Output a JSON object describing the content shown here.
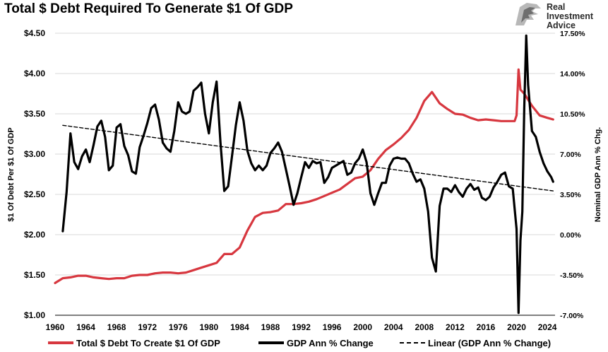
{
  "title": "Total $ Debt Required To Generate $1 Of GDP",
  "brand": {
    "line1": "Real",
    "line2": "Investment",
    "line3": "Advice"
  },
  "colors": {
    "debt": "#d7373f",
    "gdp": "#000000",
    "linear": "#000000",
    "grid": "#d9d9d9"
  },
  "chart_data": {
    "type": "line",
    "title": "Total $ Debt Required To Generate $1 Of GDP",
    "xlabel": "",
    "ylabel": "$1 Of Debt Per $1 Of GDP",
    "y2label": "Nominal GDP Ann % Chg.",
    "xlim": [
      1960,
      2025
    ],
    "ylim": [
      1.0,
      4.5
    ],
    "y2lim": [
      -7.0,
      17.5
    ],
    "grid": "horizontal",
    "legend_position": "bottom",
    "x_ticks": [
      "1960",
      "1964",
      "1968",
      "1972",
      "1976",
      "1980",
      "1984",
      "1988",
      "1992",
      "1996",
      "2000",
      "2004",
      "2008",
      "2012",
      "2016",
      "2020",
      "2024"
    ],
    "y_ticks": [
      "$1.00",
      "$1.50",
      "$2.00",
      "$2.50",
      "$3.00",
      "$3.50",
      "$4.00",
      "$4.50"
    ],
    "y2_ticks": [
      "-7.00%",
      "-3.50%",
      "0.00%",
      "3.50%",
      "7.00%",
      "10.50%",
      "14.00%",
      "17.50%"
    ],
    "series": [
      {
        "name": "Total $ Debt To Create $1 Of GDP",
        "axis": "left",
        "x": [
          1960,
          1961,
          1962,
          1963,
          1964,
          1965,
          1966,
          1967,
          1968,
          1969,
          1970,
          1971,
          1972,
          1973,
          1974,
          1975,
          1976,
          1977,
          1978,
          1979,
          1980,
          1981,
          1982,
          1983,
          1984,
          1985,
          1986,
          1987,
          1988,
          1989,
          1990,
          1991,
          1992,
          1993,
          1994,
          1995,
          1996,
          1997,
          1998,
          1999,
          2000,
          2001,
          2002,
          2003,
          2004,
          2005,
          2006,
          2007,
          2008,
          2009,
          2010,
          2011,
          2012,
          2013,
          2014,
          2015,
          2016,
          2017,
          2018,
          2019,
          2019.75,
          2020.0,
          2020.25,
          2020.5,
          2021,
          2022,
          2023,
          2024,
          2024.75
        ],
        "y": [
          1.4,
          1.46,
          1.47,
          1.49,
          1.49,
          1.47,
          1.46,
          1.45,
          1.46,
          1.46,
          1.49,
          1.5,
          1.5,
          1.52,
          1.53,
          1.53,
          1.52,
          1.53,
          1.56,
          1.59,
          1.62,
          1.65,
          1.76,
          1.76,
          1.84,
          2.05,
          2.22,
          2.27,
          2.28,
          2.3,
          2.38,
          2.38,
          2.39,
          2.41,
          2.44,
          2.48,
          2.52,
          2.56,
          2.63,
          2.7,
          2.72,
          2.8,
          2.94,
          3.05,
          3.12,
          3.2,
          3.3,
          3.45,
          3.66,
          3.77,
          3.63,
          3.56,
          3.5,
          3.49,
          3.45,
          3.42,
          3.43,
          3.42,
          3.41,
          3.41,
          3.41,
          3.48,
          4.05,
          3.8,
          3.75,
          3.6,
          3.48,
          3.45,
          3.43
        ]
      },
      {
        "name": "GDP Ann % Change",
        "axis": "right",
        "x": [
          1961.0,
          1961.5,
          1962.0,
          1962.5,
          1963.0,
          1963.5,
          1964.0,
          1964.5,
          1965.0,
          1965.5,
          1966.0,
          1966.5,
          1967.0,
          1967.5,
          1968.0,
          1968.5,
          1969.0,
          1969.5,
          1970.0,
          1970.5,
          1971.0,
          1971.5,
          1972.0,
          1972.5,
          1973.0,
          1973.5,
          1974.0,
          1974.5,
          1975.0,
          1975.5,
          1976.0,
          1976.5,
          1977.0,
          1977.5,
          1978.0,
          1978.5,
          1979.0,
          1979.5,
          1980.0,
          1980.5,
          1981.0,
          1981.5,
          1982.0,
          1982.5,
          1983.0,
          1983.5,
          1984.0,
          1984.5,
          1985.0,
          1985.5,
          1986.0,
          1986.5,
          1987.0,
          1987.5,
          1988.0,
          1988.5,
          1989.0,
          1989.5,
          1990.0,
          1990.5,
          1991.0,
          1991.5,
          1992.0,
          1992.5,
          1993.0,
          1993.5,
          1994.0,
          1994.5,
          1995.0,
          1995.5,
          1996.0,
          1996.5,
          1997.0,
          1997.5,
          1998.0,
          1998.5,
          1999.0,
          1999.5,
          2000.0,
          2000.5,
          2001.0,
          2001.5,
          2002.0,
          2002.5,
          2003.0,
          2003.5,
          2004.0,
          2004.5,
          2005.0,
          2005.5,
          2006.0,
          2006.5,
          2007.0,
          2007.5,
          2008.0,
          2008.5,
          2009.0,
          2009.5,
          2010.0,
          2010.5,
          2011.0,
          2011.5,
          2012.0,
          2012.5,
          2013.0,
          2013.5,
          2014.0,
          2014.5,
          2015.0,
          2015.5,
          2016.0,
          2016.5,
          2017.0,
          2017.5,
          2018.0,
          2018.5,
          2019.0,
          2019.5,
          2020.0,
          2020.25,
          2020.5,
          2020.75,
          2021.0,
          2021.25,
          2021.5,
          2021.75,
          2022.0,
          2022.5,
          2023.0,
          2023.5,
          2024.0,
          2024.5,
          2024.75
        ],
        "y": [
          0.3,
          3.7,
          8.8,
          6.3,
          5.7,
          6.8,
          7.4,
          6.3,
          7.8,
          9.4,
          9.9,
          8.5,
          5.6,
          6.0,
          9.3,
          9.6,
          7.7,
          6.9,
          5.5,
          5.3,
          7.6,
          8.6,
          9.7,
          11.0,
          11.3,
          10.0,
          8.0,
          7.5,
          7.2,
          9.0,
          11.5,
          10.7,
          10.5,
          10.7,
          12.5,
          12.8,
          13.2,
          10.5,
          8.8,
          11.5,
          13.3,
          8.0,
          3.8,
          4.2,
          6.8,
          9.5,
          11.5,
          9.9,
          7.3,
          6.2,
          5.6,
          6.0,
          5.6,
          6.0,
          7.1,
          7.5,
          8.0,
          7.2,
          5.7,
          4.2,
          2.6,
          3.6,
          5.0,
          6.3,
          5.8,
          6.4,
          6.2,
          6.3,
          4.5,
          5.0,
          5.8,
          6.0,
          6.2,
          6.4,
          5.2,
          5.4,
          6.2,
          6.6,
          7.4,
          6.3,
          3.6,
          2.6,
          3.6,
          4.5,
          4.5,
          6.0,
          6.6,
          6.7,
          6.6,
          6.6,
          6.2,
          5.3,
          4.6,
          4.8,
          4.0,
          2.0,
          -2.0,
          -3.2,
          2.5,
          4.0,
          4.0,
          3.7,
          4.3,
          3.7,
          3.3,
          4.0,
          4.4,
          3.9,
          4.1,
          3.2,
          3.0,
          3.3,
          4.1,
          4.6,
          5.2,
          5.4,
          4.2,
          4.0,
          0.5,
          -6.8,
          -0.5,
          2.0,
          11.0,
          17.3,
          13.0,
          11.0,
          9.0,
          8.5,
          7.2,
          6.2,
          5.5,
          5.0,
          4.6
        ]
      },
      {
        "name": "Linear (GDP Ann % Change)",
        "axis": "right",
        "style": "dashed",
        "x": [
          1961,
          2024.75
        ],
        "y": [
          9.5,
          3.8
        ]
      }
    ]
  },
  "legend": [
    {
      "label": "Total $ Debt To Create $1 Of GDP"
    },
    {
      "label": "GDP Ann % Change"
    },
    {
      "label": "Linear (GDP Ann % Change)"
    }
  ]
}
